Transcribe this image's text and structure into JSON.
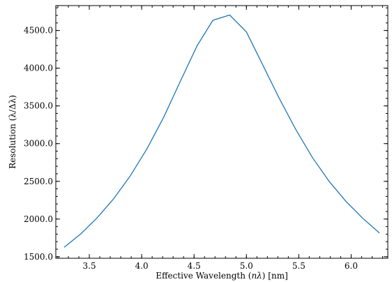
{
  "chart_data": {
    "type": "line",
    "xlabel_prefix": "Effective Wavelength (",
    "xlabel_var": "nλ",
    "xlabel_suffix": ") [nm]",
    "ylabel": "Resolution (λ/Δλ)",
    "xlim": [
      3.18,
      6.35
    ],
    "ylim": [
      1480,
      4830
    ],
    "x_ticks": [
      3.5,
      4.0,
      4.5,
      5.0,
      5.5,
      6.0
    ],
    "x_tick_labels": [
      "3.5",
      "4.0",
      "4.5",
      "5.0",
      "5.5",
      "6.0"
    ],
    "y_ticks": [
      1500,
      2000,
      2500,
      3000,
      3500,
      4000,
      4500
    ],
    "y_tick_labels": [
      "1500.0",
      "2000.0",
      "2500.0",
      "3000.0",
      "3500.0",
      "4000.0",
      "4500.0"
    ],
    "x_minor_step": 0.1,
    "y_minor_step": 100,
    "grid": false,
    "series": [
      {
        "color": "#1f77b4",
        "x": [
          3.26,
          3.42,
          3.57,
          3.73,
          3.89,
          4.05,
          4.21,
          4.37,
          4.53,
          4.68,
          4.84,
          5.0,
          5.15,
          5.31,
          5.47,
          5.63,
          5.79,
          5.95,
          6.11,
          6.27
        ],
        "y": [
          1625,
          1805,
          2010,
          2265,
          2570,
          2930,
          3350,
          3830,
          4300,
          4635,
          4705,
          4480,
          4060,
          3610,
          3190,
          2815,
          2500,
          2235,
          2010,
          1815
        ]
      }
    ]
  }
}
